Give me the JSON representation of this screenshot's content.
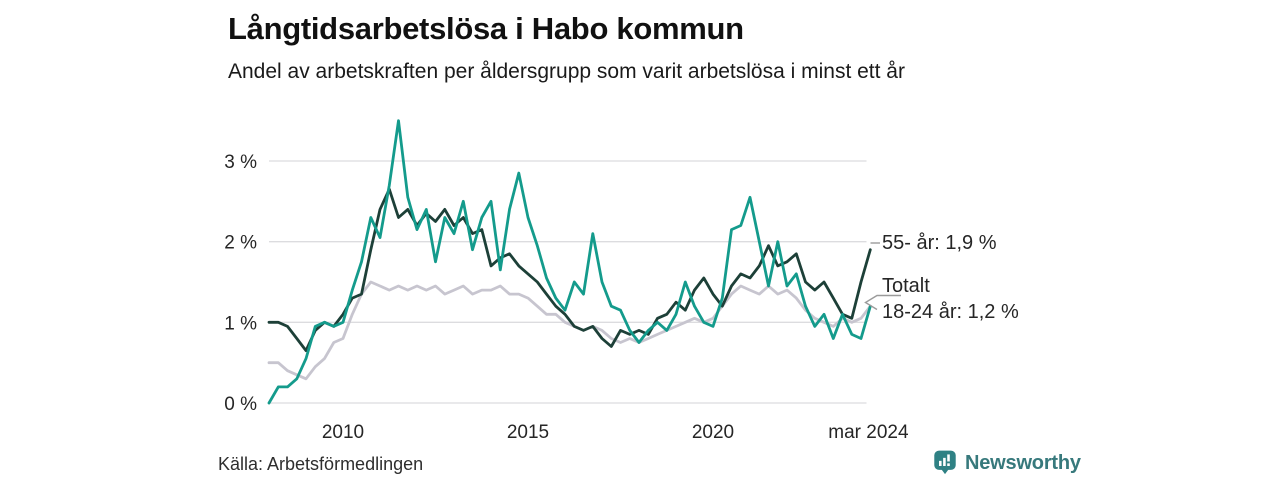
{
  "source": "Källa: Arbetsförmedlingen",
  "branding": {
    "name": "Newsworthy"
  },
  "colors": {
    "series_55": "#1d4038",
    "series_total": "#c7c5cf",
    "series_18_24": "#149b8c",
    "grid": "#dcdcdf",
    "leader": "#9b9b9b",
    "brand_teal": "#37797c",
    "title_text": "#111111",
    "tick_text": "#262626"
  },
  "chart_data": {
    "type": "line",
    "title": "Långtidsarbetslösa i Habo kommun",
    "subtitle": "Andel av arbetskraften per åldersgrupp som varit arbetslösa i minst ett år",
    "x_unit": "year (quarterly samples, 2008 – mar 2024)",
    "grid": "horizontal",
    "legend_position": "line-end-labels",
    "ylim": [
      0,
      3.6
    ],
    "y_ticks": [
      {
        "value": 0,
        "label": "0 %"
      },
      {
        "value": 1,
        "label": "1 %"
      },
      {
        "value": 2,
        "label": "2 %"
      },
      {
        "value": 3,
        "label": "3 %"
      }
    ],
    "x_ticks": [
      {
        "value": 2010,
        "label": "2010"
      },
      {
        "value": 2015,
        "label": "2015"
      },
      {
        "value": 2020,
        "label": "2020"
      },
      {
        "value": 2024.2,
        "label": "mar 2024"
      }
    ],
    "x": [
      2008,
      2008.25,
      2008.5,
      2008.75,
      2009,
      2009.25,
      2009.5,
      2009.75,
      2010,
      2010.25,
      2010.5,
      2010.75,
      2011,
      2011.25,
      2011.5,
      2011.75,
      2012,
      2012.25,
      2012.5,
      2012.75,
      2013,
      2013.25,
      2013.5,
      2013.75,
      2014,
      2014.25,
      2014.5,
      2014.75,
      2015,
      2015.25,
      2015.5,
      2015.75,
      2016,
      2016.25,
      2016.5,
      2016.75,
      2017,
      2017.25,
      2017.5,
      2017.75,
      2018,
      2018.25,
      2018.5,
      2018.75,
      2019,
      2019.25,
      2019.5,
      2019.75,
      2020,
      2020.25,
      2020.5,
      2020.75,
      2021,
      2021.25,
      2021.5,
      2021.75,
      2022,
      2022.25,
      2022.5,
      2022.75,
      2023,
      2023.25,
      2023.5,
      2023.75,
      2024,
      2024.25
    ],
    "series": [
      {
        "id": "55-ar",
        "name": "55- år",
        "color_key": "series_55",
        "end_value_pct": 1.9,
        "end_label": "55- år: 1,9 %",
        "values": [
          1.0,
          1.0,
          0.95,
          0.8,
          0.65,
          0.9,
          1.0,
          0.95,
          1.1,
          1.3,
          1.35,
          1.9,
          2.4,
          2.65,
          2.3,
          2.4,
          2.2,
          2.35,
          2.25,
          2.4,
          2.2,
          2.3,
          2.1,
          2.15,
          1.7,
          1.8,
          1.85,
          1.7,
          1.6,
          1.5,
          1.35,
          1.2,
          1.1,
          0.95,
          0.9,
          0.95,
          0.8,
          0.7,
          0.9,
          0.85,
          0.9,
          0.85,
          1.05,
          1.1,
          1.25,
          1.15,
          1.4,
          1.55,
          1.35,
          1.2,
          1.45,
          1.6,
          1.55,
          1.7,
          1.95,
          1.7,
          1.75,
          1.85,
          1.5,
          1.4,
          1.5,
          1.3,
          1.1,
          1.05,
          1.5,
          1.9
        ]
      },
      {
        "id": "totalt",
        "name": "Totalt",
        "color_key": "series_total",
        "end_value_pct": 1.2,
        "end_label": "Totalt",
        "values": [
          0.5,
          0.5,
          0.4,
          0.35,
          0.3,
          0.45,
          0.55,
          0.75,
          0.8,
          1.1,
          1.35,
          1.5,
          1.45,
          1.4,
          1.45,
          1.4,
          1.45,
          1.4,
          1.45,
          1.35,
          1.4,
          1.45,
          1.35,
          1.4,
          1.4,
          1.45,
          1.35,
          1.35,
          1.3,
          1.2,
          1.1,
          1.1,
          1.0,
          0.95,
          0.9,
          0.95,
          0.9,
          0.8,
          0.75,
          0.8,
          0.75,
          0.8,
          0.85,
          0.9,
          0.95,
          1.0,
          1.05,
          1.0,
          1.05,
          1.2,
          1.35,
          1.45,
          1.4,
          1.35,
          1.45,
          1.35,
          1.4,
          1.3,
          1.15,
          1.05,
          1.0,
          0.95,
          1.05,
          1.0,
          1.05,
          1.2
        ]
      },
      {
        "id": "18-24-ar",
        "name": "18-24 år",
        "color_key": "series_18_24",
        "end_value_pct": 1.2,
        "end_label": "18-24 år: 1,2 %",
        "values": [
          0.0,
          0.2,
          0.2,
          0.3,
          0.55,
          0.95,
          1.0,
          0.95,
          1.0,
          1.4,
          1.75,
          2.3,
          2.05,
          2.7,
          3.5,
          2.55,
          2.15,
          2.4,
          1.75,
          2.3,
          2.1,
          2.5,
          1.9,
          2.3,
          2.5,
          1.65,
          2.4,
          2.85,
          2.3,
          1.95,
          1.55,
          1.3,
          1.15,
          1.5,
          1.35,
          2.1,
          1.5,
          1.2,
          1.15,
          0.9,
          0.75,
          0.9,
          1.0,
          0.9,
          1.1,
          1.5,
          1.2,
          1.0,
          0.95,
          1.3,
          2.15,
          2.2,
          2.55,
          2.0,
          1.45,
          2.0,
          1.45,
          1.6,
          1.2,
          0.95,
          1.1,
          0.8,
          1.1,
          0.85,
          0.8,
          1.2
        ]
      }
    ]
  }
}
